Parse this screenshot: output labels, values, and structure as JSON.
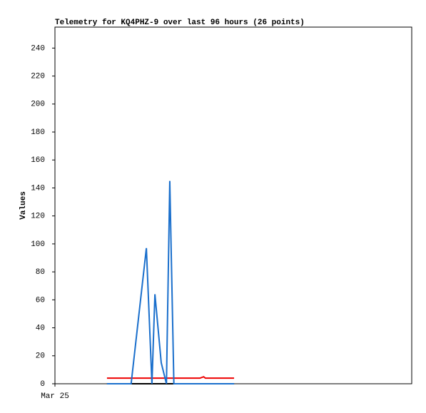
{
  "chart_data": {
    "type": "line",
    "title": "Telemetry for KQ4PHZ-9 over last 96 hours (26 points)",
    "ylabel": "Values",
    "x": [
      14,
      16,
      18,
      20.5,
      24.6,
      26.1,
      26.9,
      28.6,
      30,
      30.9,
      32,
      34,
      35,
      36,
      37,
      38,
      39,
      40,
      40.5,
      41,
      42,
      43,
      44,
      45,
      46.5,
      48.2
    ],
    "xlim": [
      0,
      96
    ],
    "xticks": [
      {
        "value": 0,
        "label": "Mar 25"
      }
    ],
    "ylim": [
      0,
      255
    ],
    "yticks": [
      0,
      20,
      40,
      60,
      80,
      100,
      120,
      140,
      160,
      180,
      200,
      220,
      240
    ],
    "series": [
      {
        "color": "#000000",
        "values": [
          0,
          0,
          0,
          0,
          0,
          0,
          0,
          0,
          0,
          0,
          0,
          0,
          0,
          0,
          0,
          0,
          0,
          0,
          0,
          0,
          0,
          0,
          0,
          0,
          0,
          0
        ]
      },
      {
        "color": "#ee0000",
        "values": [
          4,
          4,
          4,
          4,
          4,
          4,
          4,
          4,
          4,
          4,
          4,
          4,
          4,
          4,
          4,
          4,
          4,
          5,
          4,
          4,
          4,
          4,
          4,
          4,
          4,
          4
        ]
      },
      {
        "color": "#1a6fcc",
        "values": [
          0,
          0,
          0,
          0,
          97,
          0,
          64,
          15,
          0,
          145,
          0,
          0,
          0,
          0,
          0,
          0,
          0,
          0,
          0,
          0,
          0,
          0,
          0,
          0,
          0,
          0
        ]
      }
    ]
  }
}
